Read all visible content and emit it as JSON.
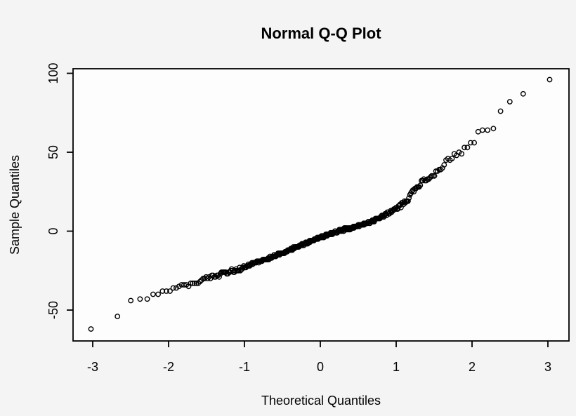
{
  "page": {
    "background_color": "#f4f4f4",
    "plot_background_color": "#fdfdfd",
    "axis_color": "#000000"
  },
  "chart_data": {
    "type": "scatter",
    "title": "Normal Q-Q Plot",
    "xlabel": "Theoretical Quantiles",
    "ylabel": "Sample Quantiles",
    "xlim": [
      -3.26,
      3.26
    ],
    "ylim": [
      -70,
      103
    ],
    "grid": false,
    "legend": null,
    "marker": "open-circle",
    "point_color": "#000000",
    "n_points": 400,
    "x_ticks": [
      {
        "value": -3,
        "label": "-3"
      },
      {
        "value": -2,
        "label": "-2"
      },
      {
        "value": -1,
        "label": "-1"
      },
      {
        "value": 0,
        "label": "0"
      },
      {
        "value": 1,
        "label": "1"
      },
      {
        "value": 2,
        "label": "2"
      },
      {
        "value": 3,
        "label": "3"
      }
    ],
    "y_ticks": [
      {
        "value": 100,
        "label": "100"
      },
      {
        "value": 50,
        "label": "50"
      },
      {
        "value": 0,
        "label": "0"
      },
      {
        "value": -50,
        "label": "-50"
      }
    ],
    "curve_anchors": [
      [
        -3.03,
        -62.5
      ],
      [
        -2.68,
        -54
      ],
      [
        -2.49,
        -44.2
      ],
      [
        -2.38,
        -43
      ],
      [
        -2.3,
        -41.6
      ],
      [
        -2.2,
        -41
      ],
      [
        -2.12,
        -40.2
      ],
      [
        -2.03,
        -39
      ],
      [
        -1.9,
        -36.5
      ],
      [
        -1.8,
        -34.7
      ],
      [
        -1.7,
        -33
      ],
      [
        -1.6,
        -31.7
      ],
      [
        -1.5,
        -30
      ],
      [
        -1.4,
        -28.6
      ],
      [
        -1.3,
        -27
      ],
      [
        -1.2,
        -25.8
      ],
      [
        -1.1,
        -24.3
      ],
      [
        -1.0,
        -22.8
      ],
      [
        -0.9,
        -21
      ],
      [
        -0.8,
        -19.3
      ],
      [
        -0.7,
        -17.5
      ],
      [
        -0.6,
        -15.8
      ],
      [
        -0.5,
        -14
      ],
      [
        -0.4,
        -11.8
      ],
      [
        -0.3,
        -9.8
      ],
      [
        -0.2,
        -7.8
      ],
      [
        -0.1,
        -5.8
      ],
      [
        0.0,
        -3.8
      ],
      [
        0.1,
        -2.2
      ],
      [
        0.2,
        -0.6
      ],
      [
        0.3,
        0.9
      ],
      [
        0.4,
        2.1
      ],
      [
        0.5,
        3.4
      ],
      [
        0.6,
        4.8
      ],
      [
        0.7,
        6.5
      ],
      [
        0.75,
        7.5
      ],
      [
        0.85,
        10
      ],
      [
        0.95,
        13
      ],
      [
        1.05,
        16
      ],
      [
        1.15,
        20
      ],
      [
        1.24,
        27
      ],
      [
        1.36,
        32
      ],
      [
        1.52,
        36.5
      ],
      [
        1.6,
        40
      ],
      [
        1.68,
        46
      ],
      [
        1.81,
        48
      ],
      [
        1.94,
        53
      ],
      [
        2.03,
        57.5
      ],
      [
        2.08,
        62.8
      ],
      [
        2.14,
        63.3
      ],
      [
        2.19,
        63.7
      ],
      [
        2.29,
        66.5
      ],
      [
        2.38,
        76
      ],
      [
        2.51,
        82
      ],
      [
        2.69,
        87
      ],
      [
        3.03,
        96
      ]
    ]
  }
}
